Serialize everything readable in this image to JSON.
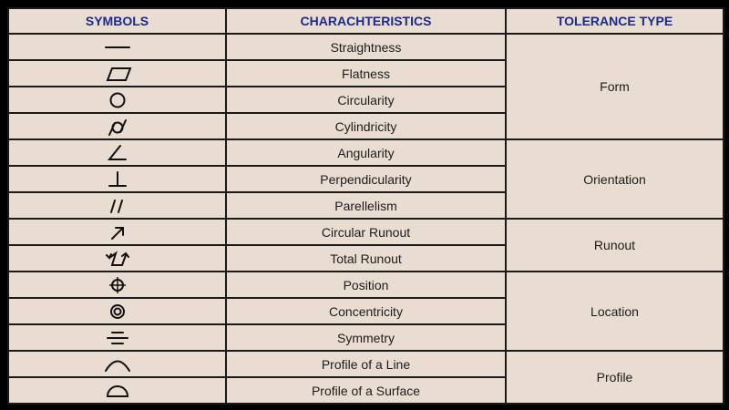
{
  "headers": [
    "SYMBOLS",
    "CHARACHTERISTICS",
    "TOLERANCE TYPE"
  ],
  "rows": [
    {
      "icon": "straightness-icon",
      "characteristic": "Straightness"
    },
    {
      "icon": "flatness-icon",
      "characteristic": "Flatness"
    },
    {
      "icon": "circularity-icon",
      "characteristic": "Circularity"
    },
    {
      "icon": "cylindricity-icon",
      "characteristic": "Cylindricity"
    },
    {
      "icon": "angularity-icon",
      "characteristic": "Angularity"
    },
    {
      "icon": "perpendicularity-icon",
      "characteristic": "Perpendicularity"
    },
    {
      "icon": "parallelism-icon",
      "characteristic": "Parellelism"
    },
    {
      "icon": "circular-runout-icon",
      "characteristic": "Circular Runout"
    },
    {
      "icon": "total-runout-icon",
      "characteristic": "Total Runout"
    },
    {
      "icon": "position-icon",
      "characteristic": "Position"
    },
    {
      "icon": "concentricity-icon",
      "characteristic": "Concentricity"
    },
    {
      "icon": "symmetry-icon",
      "characteristic": "Symmetry"
    },
    {
      "icon": "profile-line-icon",
      "characteristic": "Profile of a Line"
    },
    {
      "icon": "profile-surface-icon",
      "characteristic": "Profile of a Surface"
    }
  ],
  "groups": [
    {
      "label": "Form",
      "span": 4
    },
    {
      "label": "Orientation",
      "span": 3
    },
    {
      "label": "Runout",
      "span": 2
    },
    {
      "label": "Location",
      "span": 3
    },
    {
      "label": "Profile",
      "span": 2
    }
  ],
  "colors": {
    "header_text": "#1b2a8c",
    "cell_bg": "#e9ddd2",
    "border": "#1a1a1a",
    "background": "#000000"
  }
}
